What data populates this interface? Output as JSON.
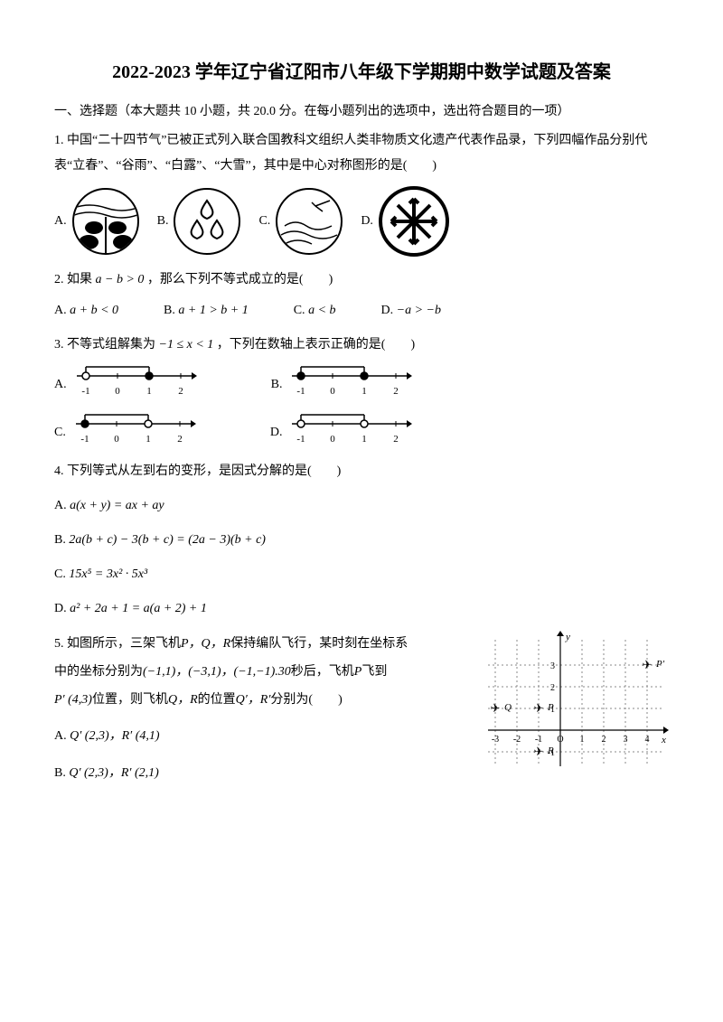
{
  "title": "2022-2023 学年辽宁省辽阳市八年级下学期期中数学试题及答案",
  "section1": "一、选择题（本大题共 10 小题，共 20.0 分。在每小题列出的选项中，选出符合题目的一项）",
  "q1": {
    "stem": "1.  中国“二十四节气”已被正式列入联合国教科文组织人类非物质文化遗产代表作品录，下列四幅作品分别代表“立春”、“谷雨”、“白露”、“大雪”，其中是中心对称图形的是(　　)",
    "A": "A.",
    "B": "B.",
    "C": "C.",
    "D": "D."
  },
  "q2": {
    "stem_a": "2.  如果",
    "stem_expr": "a − b > 0",
    "stem_b": "，那么下列不等式成立的是(　　)",
    "A": "A.",
    "A_expr": "a + b < 0",
    "B": "B.",
    "B_expr": "a + 1 > b + 1",
    "C": "C.",
    "C_expr": "a < b",
    "D": "D.",
    "D_expr": "−a > −b"
  },
  "q3": {
    "stem_a": "3.  不等式组解集为",
    "stem_expr": "−1 ≤ x < 1",
    "stem_b": "，下列在数轴上表示正确的是(　　)",
    "A": "A.",
    "B": "B.",
    "C": "C.",
    "D": "D.",
    "ticks": [
      "-1",
      "0",
      "1",
      "2"
    ]
  },
  "q4": {
    "stem": "4.  下列等式从左到右的变形，是因式分解的是(　　)",
    "A": "A.",
    "A_expr": "a(x + y) = ax + ay",
    "B": "B.",
    "B_expr": "2a(b + c) − 3(b + c) = (2a − 3)(b + c)",
    "C": "C.",
    "C_expr": "15x⁵ = 3x² · 5x³",
    "D": "D.",
    "D_expr": "a² + 2a + 1 = a(a + 2) + 1"
  },
  "q5": {
    "line1a": "5.  如图所示，三架飞机",
    "pqr": "P，Q，R",
    "line1b": "保持编队飞行，某时刻在坐标系",
    "line2a": "中的坐标分别为",
    "coords": "(−1,1)，(−3,1)，(−1,−1).30",
    "line2b": "秒后，飞机",
    "p": "P",
    "line2c": "飞到",
    "line3a": "P′ (4,3)",
    "line3b": "位置，则飞机",
    "qr": "Q，R",
    "line3c": "的位置",
    "qr2": "Q′，R′",
    "line3d": "分别为(　　)",
    "A": "A.",
    "A_expr": "Q′ (2,3)，R′ (4,1)",
    "B": "B.",
    "B_expr": "Q′ (2,3)，R′ (2,1)",
    "grid": {
      "xticks": [
        "-3",
        "-2",
        "-1",
        "O",
        "1",
        "2",
        "3",
        "4"
      ],
      "yticks": [
        "-1",
        "1",
        "2",
        "3"
      ]
    }
  }
}
